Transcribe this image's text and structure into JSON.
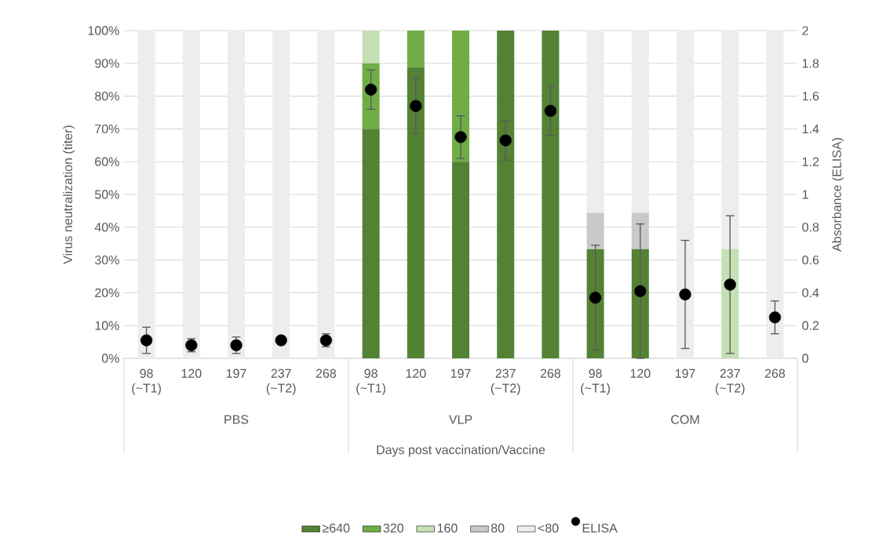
{
  "chart_data": {
    "type": "bar",
    "stacked": true,
    "categories": [
      "98 (~T1)",
      "120",
      "197",
      "237 (~T2)",
      "268",
      "98 (~T1)",
      "120",
      "197",
      "237 (~T2)",
      "268",
      "98 (~T1)",
      "120",
      "197",
      "237 (~T2)",
      "268"
    ],
    "annotations": [
      "PBS",
      "VLP",
      "COM"
    ],
    "xlabel": "Days post vaccination/Vaccine",
    "ylabel": "Virus neutralization (titer)",
    "y2label": "Absorbance (ELISA)",
    "ylim": [
      0,
      100
    ],
    "yticks": [
      {
        "value": 0,
        "label": "0%"
      },
      {
        "value": 10,
        "label": "10%"
      },
      {
        "value": 20,
        "label": "20%"
      },
      {
        "value": 30,
        "label": "30%"
      },
      {
        "value": 40,
        "label": "40%"
      },
      {
        "value": 50,
        "label": "50%"
      },
      {
        "value": 60,
        "label": "60%"
      },
      {
        "value": 70,
        "label": "70%"
      },
      {
        "value": 80,
        "label": "80%"
      },
      {
        "value": 90,
        "label": "90%"
      },
      {
        "value": 100,
        "label": "100%"
      }
    ],
    "y2lim": [
      0,
      2
    ],
    "y2ticks": [
      0,
      0.2,
      0.4,
      0.6,
      0.8,
      1,
      1.2,
      1.4,
      1.6,
      1.8,
      2
    ],
    "grid": "y",
    "legend": "bottom",
    "series": [
      {
        "name": "≥640",
        "color": "#548235",
        "values": [
          0,
          0,
          0,
          0,
          0,
          70,
          88.9,
          60,
          100,
          100,
          33.3,
          33.3,
          0,
          0,
          0
        ]
      },
      {
        "name": "320",
        "color": "#70ad47",
        "values": [
          0,
          0,
          0,
          0,
          0,
          20,
          11.1,
          40,
          0,
          0,
          0,
          0,
          0,
          0,
          0
        ]
      },
      {
        "name": "160",
        "color": "#c5e0b4",
        "values": [
          0,
          0,
          0,
          0,
          0,
          10,
          0,
          0,
          0,
          0,
          0,
          0,
          0,
          33.3,
          0
        ]
      },
      {
        "name": "80",
        "color": "#c9c9c9",
        "values": [
          0,
          0,
          0,
          0,
          0,
          0,
          0,
          0,
          0,
          0,
          11.1,
          11.1,
          0,
          0,
          0
        ]
      },
      {
        "name": "<80",
        "color": "#ededed",
        "values": [
          100,
          100,
          100,
          100,
          100,
          0,
          0,
          0,
          0,
          0,
          55.6,
          55.6,
          100,
          66.7,
          100
        ]
      },
      {
        "name": "ELISA",
        "type": "scatter",
        "axis": "y2",
        "marker": "circle",
        "color": "#000000",
        "values": [
          0.11,
          0.08,
          0.08,
          0.11,
          0.11,
          1.64,
          1.54,
          1.35,
          1.33,
          1.51,
          0.37,
          0.41,
          0.39,
          0.45,
          0.25
        ],
        "errors": [
          0.08,
          0.04,
          0.05,
          0.02,
          0.04,
          0.12,
          0.17,
          0.13,
          0.12,
          0.15,
          0.32,
          0.41,
          0.33,
          0.42,
          0.1
        ]
      }
    ]
  }
}
